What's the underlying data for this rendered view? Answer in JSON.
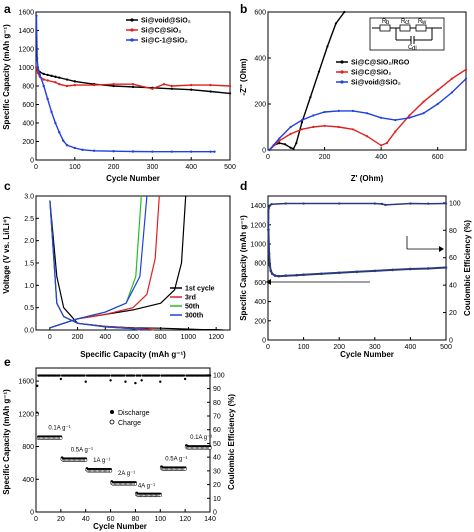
{
  "chart_data": [
    {
      "panel": "a",
      "type": "line",
      "xlabel": "Cycle Number",
      "ylabel": "Specific Capacity (mAh g⁻¹)",
      "xlim": [
        0,
        500
      ],
      "ylim": [
        0,
        1600
      ],
      "xticks": [
        0,
        100,
        200,
        300,
        400,
        500
      ],
      "yticks": [
        0,
        200,
        400,
        600,
        800,
        1000,
        1200,
        1400,
        1600
      ],
      "legend": "top-right",
      "series": [
        {
          "name": "Si@void@SiO₂",
          "color": "#000000",
          "x": [
            1,
            5,
            10,
            20,
            30,
            40,
            50,
            60,
            80,
            100,
            150,
            200,
            250,
            300,
            350,
            400,
            450,
            500
          ],
          "y": [
            1000,
            980,
            950,
            930,
            920,
            910,
            900,
            890,
            870,
            850,
            820,
            800,
            790,
            780,
            770,
            760,
            740,
            720
          ]
        },
        {
          "name": "Si@C@SiO₂",
          "color": "#e02020",
          "x": [
            1,
            5,
            10,
            20,
            30,
            50,
            60,
            80,
            100,
            150,
            200,
            250,
            300,
            330,
            350,
            400,
            450,
            500
          ],
          "y": [
            1000,
            940,
            900,
            870,
            860,
            840,
            820,
            800,
            810,
            810,
            820,
            820,
            770,
            820,
            800,
            810,
            810,
            800
          ]
        },
        {
          "name": "Si@C-1@SiO₂",
          "color": "#2040e0",
          "x": [
            1,
            3,
            5,
            10,
            20,
            30,
            40,
            50,
            60,
            70,
            80,
            100,
            120,
            150,
            200,
            250,
            300,
            350,
            400,
            450,
            460
          ],
          "y": [
            1560,
            1100,
            1000,
            920,
            800,
            660,
            520,
            400,
            300,
            210,
            160,
            130,
            110,
            100,
            95,
            92,
            90,
            90,
            90,
            90,
            90
          ]
        }
      ]
    },
    {
      "panel": "b",
      "type": "line",
      "xlabel": "Z' (Ohm)",
      "ylabel": "-Z'' (Ohm)",
      "xlim": [
        0,
        700
      ],
      "ylim": [
        0,
        600
      ],
      "xticks": [
        0,
        200,
        400,
        600
      ],
      "yticks": [
        0,
        200,
        400,
        600
      ],
      "legend": "center-right",
      "inset": {
        "labels": [
          "R",
          "b",
          "R",
          "ct",
          "R",
          "w",
          "C",
          "dl"
        ]
      },
      "series": [
        {
          "name": "Si@C@SiO₂/RGO",
          "color": "#000000",
          "x": [
            5,
            20,
            40,
            60,
            80,
            90,
            100,
            120,
            150,
            180,
            210,
            240,
            270
          ],
          "y": [
            0,
            20,
            30,
            25,
            10,
            5,
            30,
            120,
            230,
            340,
            450,
            550,
            600
          ]
        },
        {
          "name": "Si@C@SiO₂",
          "color": "#e02020",
          "x": [
            5,
            40,
            80,
            120,
            160,
            200,
            250,
            300,
            350,
            400,
            420,
            450,
            500,
            550,
            600,
            650,
            700
          ],
          "y": [
            0,
            40,
            70,
            90,
            100,
            105,
            100,
            90,
            60,
            20,
            30,
            80,
            150,
            210,
            260,
            310,
            350
          ]
        },
        {
          "name": "Si@void@SiO₂",
          "color": "#2040e0",
          "x": [
            5,
            40,
            80,
            120,
            160,
            200,
            250,
            300,
            350,
            400,
            450,
            500,
            550,
            600,
            650,
            700
          ],
          "y": [
            0,
            50,
            100,
            130,
            150,
            165,
            170,
            170,
            160,
            140,
            130,
            140,
            160,
            200,
            250,
            310
          ]
        }
      ]
    },
    {
      "panel": "c",
      "type": "line",
      "xlabel": "Specific Capacity (mAh g⁻¹)",
      "ylabel": "Voltage (V vs. Li/Li⁺)",
      "xlim": [
        -100,
        1300
      ],
      "ylim": [
        0,
        3.0
      ],
      "xticks": [
        0,
        200,
        400,
        600,
        800,
        1000,
        1200
      ],
      "yticks": [
        0.0,
        0.5,
        1.0,
        1.5,
        2.0,
        2.5,
        3.0
      ],
      "legend": "center-right",
      "series": [
        {
          "name": "1st cycle",
          "color": "#000000",
          "x": [
            0,
            50,
            100,
            200,
            400,
            600,
            800,
            1000,
            1100,
            1200,
            1250
          ],
          "y": [
            2.9,
            1.2,
            0.5,
            0.15,
            0.08,
            0.05,
            0.04,
            0.02,
            0.01,
            0.01,
            0.0
          ],
          "x2": [
            0,
            100,
            200,
            400,
            600,
            800,
            900,
            950,
            980
          ],
          "y2": [
            0.05,
            0.15,
            0.25,
            0.35,
            0.45,
            0.6,
            0.9,
            1.5,
            3.0
          ]
        },
        {
          "name": "3rd",
          "color": "#e02020",
          "x": [
            0,
            50,
            100,
            200,
            400,
            600,
            700,
            750
          ],
          "y": [
            2.9,
            0.6,
            0.3,
            0.15,
            0.08,
            0.04,
            0.02,
            0.0
          ],
          "x2": [
            0,
            100,
            200,
            400,
            600,
            700,
            760,
            790
          ],
          "y2": [
            0.05,
            0.15,
            0.25,
            0.35,
            0.5,
            0.8,
            1.6,
            3.0
          ]
        },
        {
          "name": "50th",
          "color": "#22c022",
          "x": [
            0,
            50,
            100,
            200,
            400,
            600,
            650
          ],
          "y": [
            2.9,
            0.6,
            0.3,
            0.15,
            0.07,
            0.03,
            0.0
          ],
          "x2": [
            0,
            100,
            200,
            400,
            550,
            620,
            660
          ],
          "y2": [
            0.05,
            0.15,
            0.25,
            0.4,
            0.6,
            1.2,
            3.0
          ]
        },
        {
          "name": "300th",
          "color": "#2040e0",
          "x": [
            0,
            50,
            100,
            200,
            400,
            600,
            700
          ],
          "y": [
            2.9,
            0.6,
            0.3,
            0.15,
            0.07,
            0.03,
            0.0
          ],
          "x2": [
            0,
            100,
            200,
            400,
            550,
            650,
            700
          ],
          "y2": [
            0.05,
            0.15,
            0.25,
            0.4,
            0.6,
            1.2,
            3.0
          ]
        }
      ]
    },
    {
      "panel": "d",
      "type": "scatter",
      "xlabel": "Cycle Number",
      "ylabel": "Specific Capacity (mAh g⁻¹)",
      "ylabel_right": "Coulombic Efficiency (%)",
      "xlim": [
        0,
        500
      ],
      "ylim": [
        0,
        1500
      ],
      "ylim_right": [
        0,
        105
      ],
      "xticks": [
        0,
        100,
        200,
        300,
        400,
        500
      ],
      "yticks": [
        0,
        200,
        400,
        600,
        800,
        1000,
        1200,
        1400
      ],
      "yticks_right": [
        0,
        20,
        40,
        60,
        80,
        100
      ],
      "series": [
        {
          "name": "capacity",
          "axis": "left",
          "color": "#2b3a7a",
          "x": [
            1,
            3,
            5,
            8,
            12,
            20,
            30,
            50,
            80,
            100,
            150,
            200,
            250,
            300,
            350,
            400,
            450,
            500
          ],
          "y": [
            1150,
            900,
            780,
            720,
            690,
            670,
            665,
            670,
            675,
            680,
            690,
            700,
            710,
            720,
            730,
            740,
            745,
            755
          ]
        },
        {
          "name": "efficiency",
          "axis": "right",
          "color": "#2b3a7a",
          "x": [
            1,
            2,
            5,
            10,
            50,
            100,
            200,
            300,
            320,
            330,
            400,
            450,
            500
          ],
          "y": [
            72,
            96,
            98,
            99,
            99.5,
            99.5,
            99.5,
            99.5,
            99.2,
            98.5,
            99.5,
            99.4,
            99.5
          ]
        }
      ]
    },
    {
      "panel": "e",
      "type": "scatter",
      "xlabel": "Cycle Number",
      "ylabel": "Specific Capacity (mAh g⁻¹)",
      "ylabel_right": "Coulombic Efficiency (%)",
      "xlim": [
        0,
        140
      ],
      "ylim": [
        0,
        1760
      ],
      "ylim_right": [
        0,
        105
      ],
      "xticks": [
        0,
        20,
        40,
        60,
        80,
        100,
        120,
        140
      ],
      "yticks": [
        0,
        400,
        800,
        1200,
        1600
      ],
      "yticks_right": [
        0,
        10,
        20,
        30,
        40,
        50,
        60,
        70,
        80,
        90,
        100
      ],
      "legend": "center",
      "legend_labels": [
        "Discharge",
        "Charge"
      ],
      "rate_labels": [
        "0.1A g⁻¹",
        "0.5A g⁻¹",
        "1A g⁻¹",
        "2A g⁻¹",
        "4A g⁻¹",
        "0.5A g⁻¹",
        "0.1A g⁻¹"
      ],
      "segments": [
        {
          "x": [
            1,
            20
          ],
          "value": 920,
          "first": 1210
        },
        {
          "x": [
            21,
            40
          ],
          "value": 650
        },
        {
          "x": [
            41,
            60
          ],
          "value": 520
        },
        {
          "x": [
            61,
            80
          ],
          "value": 360
        },
        {
          "x": [
            81,
            100
          ],
          "value": 220
        },
        {
          "x": [
            101,
            120
          ],
          "value": 540
        },
        {
          "x": [
            121,
            140
          ],
          "value": 800
        }
      ],
      "efficiency": {
        "first": 92,
        "typical": 99.5,
        "dips": [
          [
            20,
            97
          ],
          [
            40,
            95
          ],
          [
            60,
            96
          ],
          [
            72,
            95
          ],
          [
            80,
            94
          ],
          [
            85,
            96
          ],
          [
            100,
            95
          ],
          [
            120,
            97
          ]
        ]
      }
    }
  ]
}
